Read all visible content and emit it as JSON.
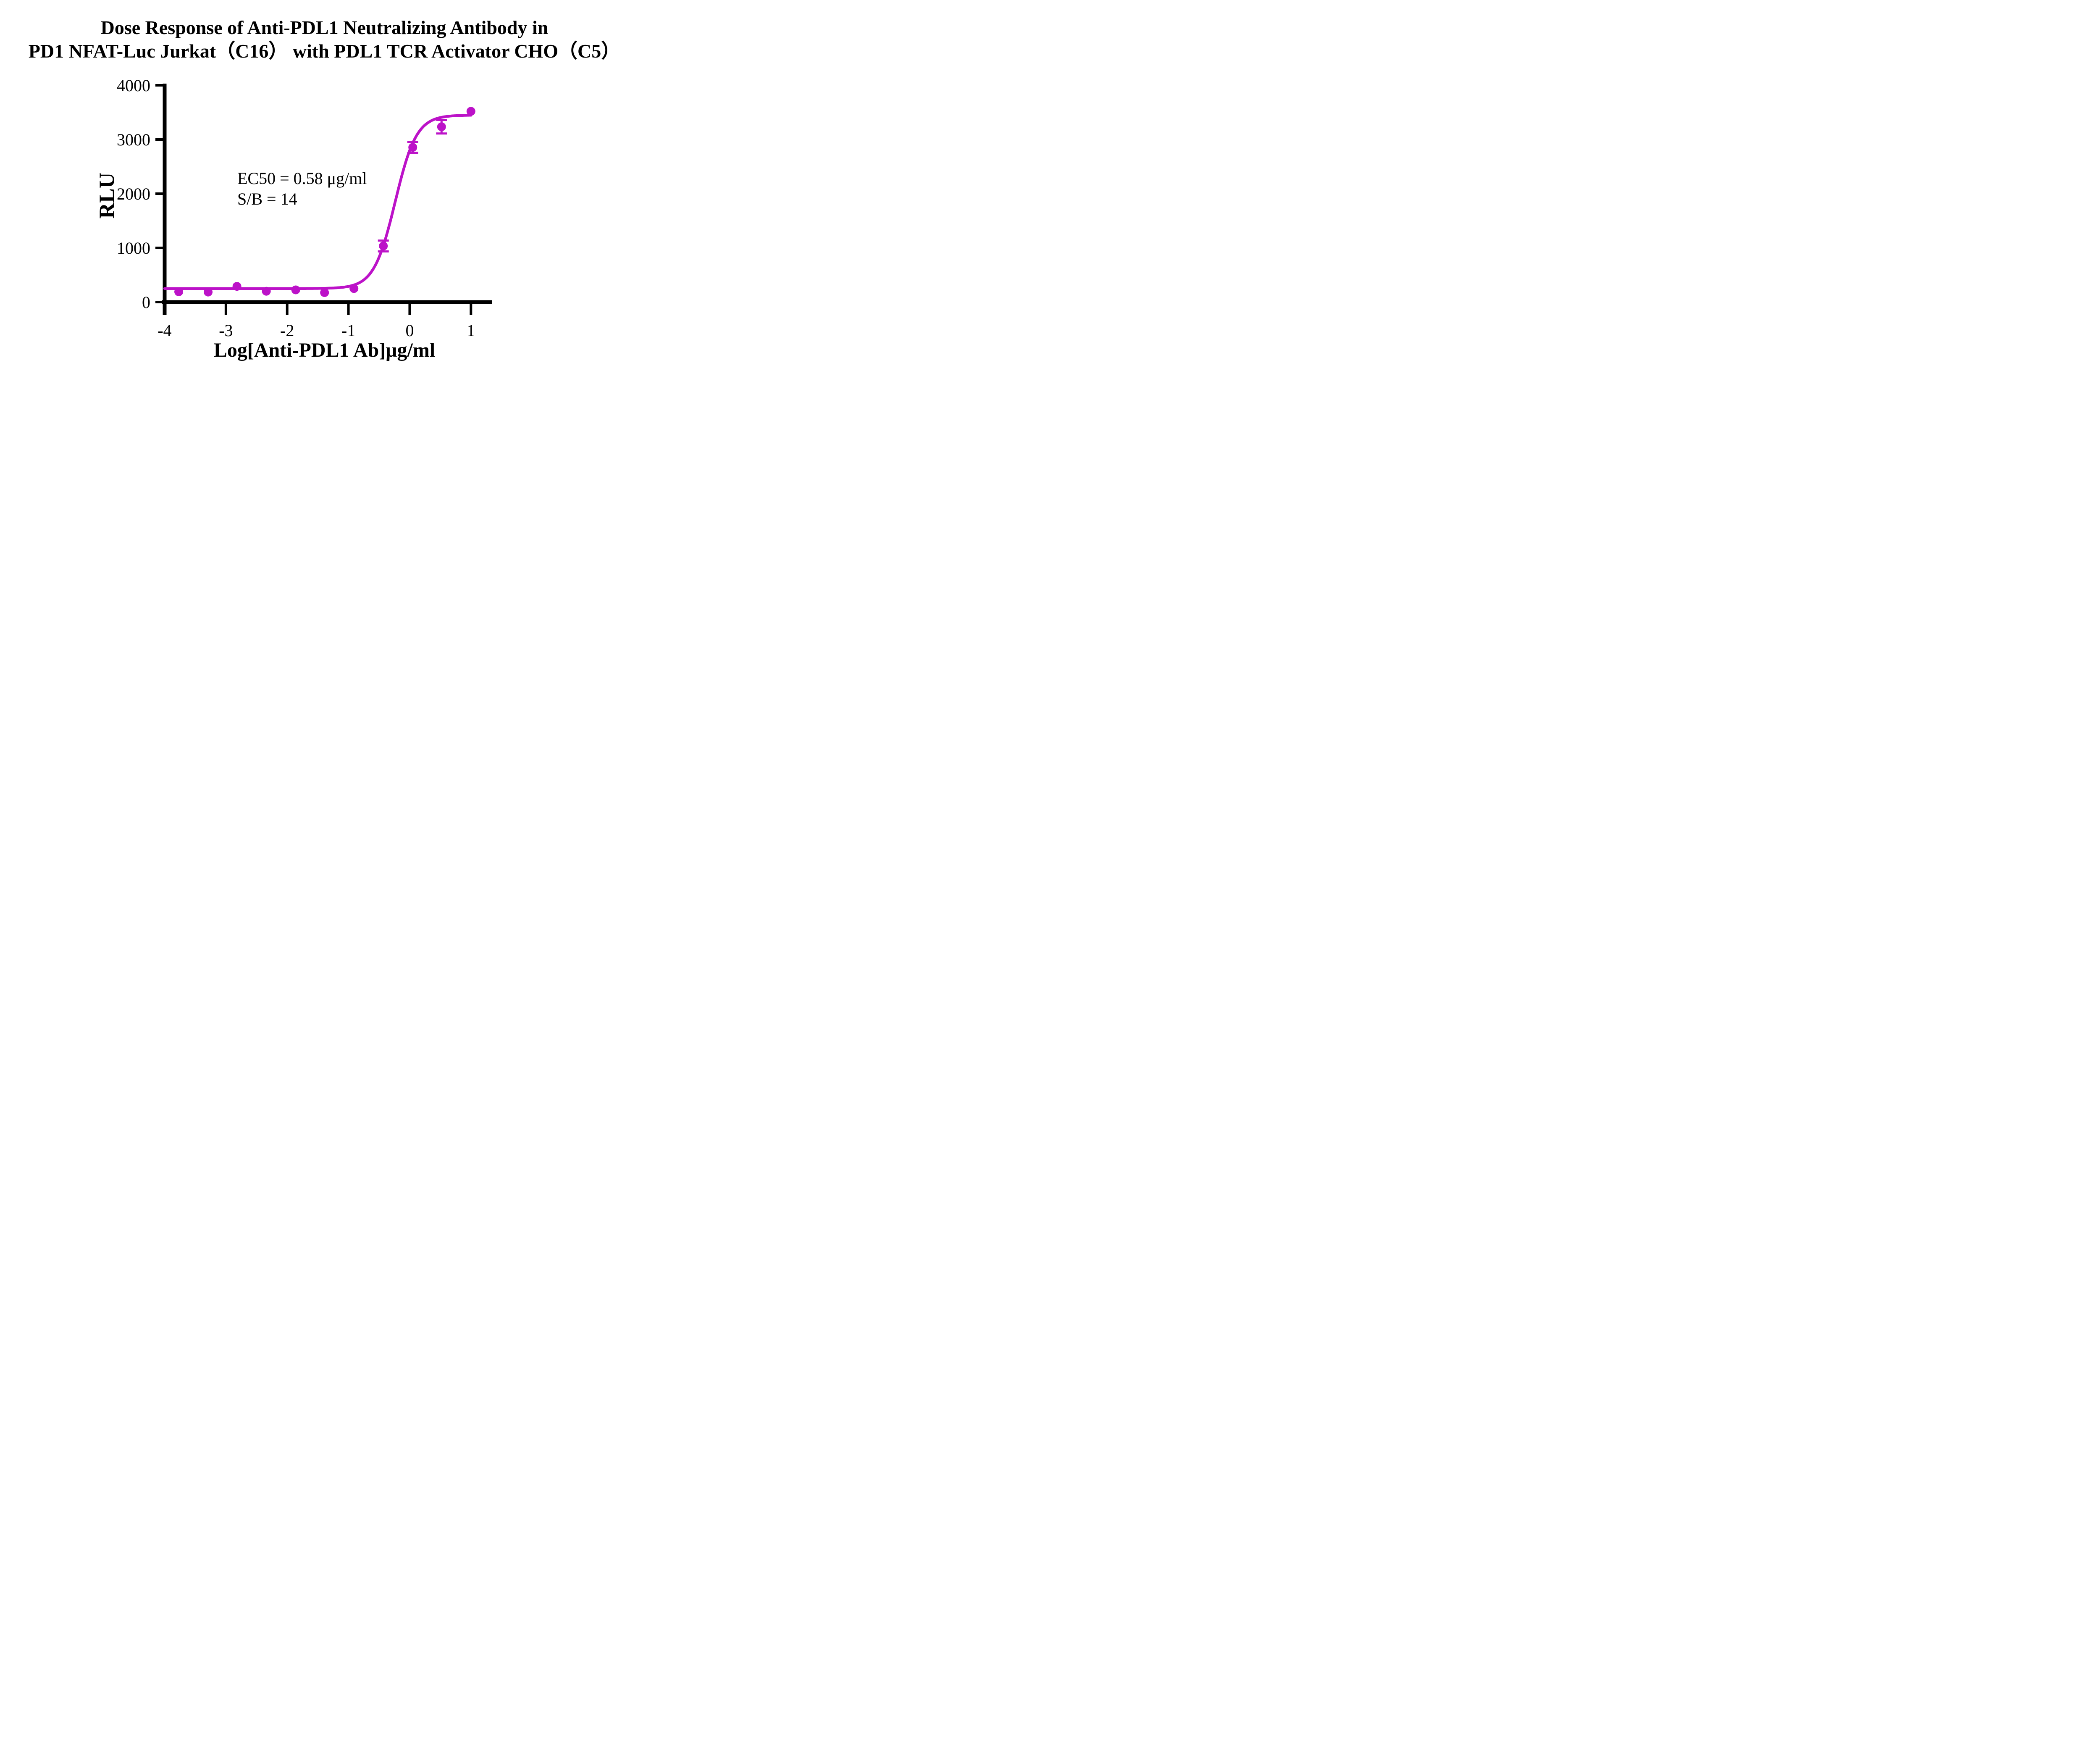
{
  "title": {
    "line1": "Dose Response of Anti-PDL1 Neutralizing Antibody in",
    "line2": "PD1 NFAT-Luc Jurkat（C16） with PDL1 TCR Activator CHO（C5）"
  },
  "chart_data": {
    "type": "scatter",
    "title": "Dose Response of Anti-PDL1 Neutralizing Antibody in PD1 NFAT-Luc Jurkat（C16） with PDL1 TCR Activator CHO（C5）",
    "xlabel": "Log[Anti-PDL1 Ab]μg/ml",
    "ylabel": "RLU",
    "x_ticks": [
      -4,
      -3,
      -2,
      -1,
      0,
      1
    ],
    "y_ticks": [
      0,
      1000,
      2000,
      3000,
      4000
    ],
    "xlim": [
      -4,
      1.35
    ],
    "ylim": [
      0,
      4000
    ],
    "grid": false,
    "legend_position": "none",
    "annotation": [
      "EC50 = 0.58 μg/ml",
      "S/B = 14"
    ],
    "accent_color": "#BC12C8",
    "axis_color": "#000000",
    "series": [
      {
        "name": "Anti-PDL1 Ab",
        "color": "#BC12C8",
        "marker": "circle",
        "points": [
          {
            "x": -3.77,
            "y": 190,
            "err": 0
          },
          {
            "x": -3.29,
            "y": 185,
            "err": 0
          },
          {
            "x": -2.82,
            "y": 290,
            "err": 0
          },
          {
            "x": -2.34,
            "y": 200,
            "err": 0
          },
          {
            "x": -1.86,
            "y": 225,
            "err": 0
          },
          {
            "x": -1.39,
            "y": 175,
            "err": 0
          },
          {
            "x": -0.91,
            "y": 250,
            "err": 0
          },
          {
            "x": -0.43,
            "y": 1035,
            "err": 100
          },
          {
            "x": 0.05,
            "y": 2855,
            "err": 100
          },
          {
            "x": 0.52,
            "y": 3235,
            "err": 125
          },
          {
            "x": 1.0,
            "y": 3520,
            "err": 0
          }
        ],
        "fit": {
          "model": "4PL",
          "bottom": 250,
          "top": 3450,
          "logEC50": -0.2366,
          "hill": 2.5,
          "x_range": [
            -4.0,
            1.0
          ],
          "ec50_ugml": 0.58,
          "s_over_b": 14
        }
      }
    ]
  }
}
